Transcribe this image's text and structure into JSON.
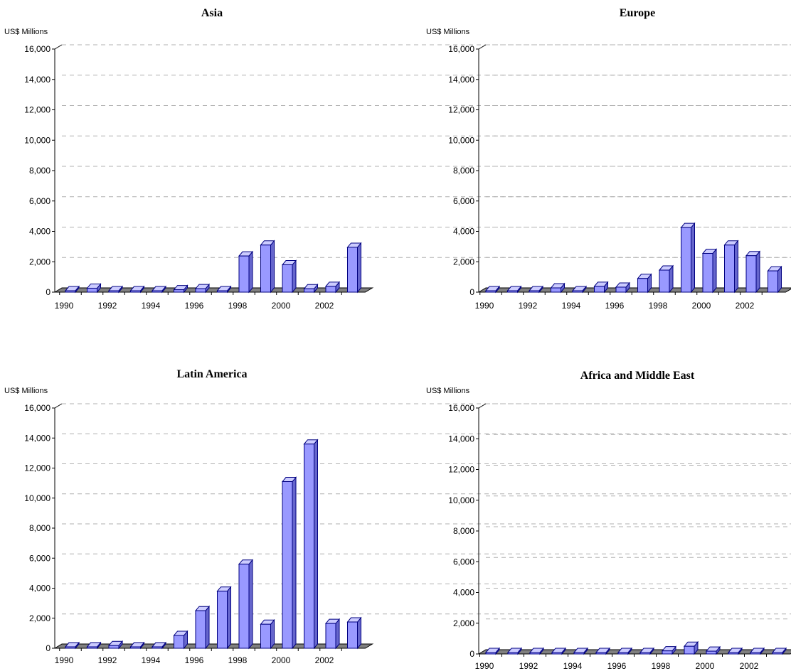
{
  "chart_data": [
    {
      "type": "bar",
      "title": "Asia",
      "ylabel": "US$ Millions",
      "xlabel": "",
      "ylim": [
        0,
        16000
      ],
      "yticks": [
        "0",
        "2,000",
        "4,000",
        "6,000",
        "8,000",
        "10,000",
        "12,000",
        "14,000",
        "16,000"
      ],
      "categories": [
        "1990",
        "1991",
        "1992",
        "1993",
        "1994",
        "1995",
        "1996",
        "1997",
        "1998",
        "1999",
        "2000",
        "2001",
        "2002",
        "2003"
      ],
      "xtick_labels": [
        "1990",
        "",
        "1992",
        "",
        "1994",
        "",
        "1996",
        "",
        "1998",
        "",
        "2000",
        "",
        "2002",
        ""
      ],
      "values": [
        60,
        260,
        20,
        70,
        30,
        160,
        230,
        60,
        2380,
        3100,
        1800,
        220,
        380,
        2950
      ],
      "bar_color": "#9999ff",
      "grid": true
    },
    {
      "type": "bar",
      "title": "Europe",
      "ylabel": "US$ Millions",
      "xlabel": "",
      "ylim": [
        0,
        16000
      ],
      "yticks": [
        "0",
        "2,000",
        "4,000",
        "6,000",
        "8,000",
        "10,000",
        "12,000",
        "14,000",
        "16,000"
      ],
      "categories": [
        "1990",
        "1991",
        "1992",
        "1993",
        "1994",
        "1995",
        "1996",
        "1997",
        "1998",
        "1999",
        "2000",
        "2001",
        "2002",
        "2003"
      ],
      "xtick_labels": [
        "1990",
        "",
        "1992",
        "",
        "1994",
        "",
        "1996",
        "",
        "1998",
        "",
        "2000",
        "",
        "2002",
        ""
      ],
      "values": [
        30,
        20,
        60,
        280,
        80,
        380,
        330,
        900,
        1450,
        4250,
        2550,
        3100,
        2400,
        1400
      ],
      "bar_color": "#9999ff",
      "grid": true
    },
    {
      "type": "bar",
      "title": "Latin America",
      "ylabel": "US$ Millions",
      "xlabel": "",
      "ylim": [
        0,
        16000
      ],
      "yticks": [
        "0",
        "2,000",
        "4,000",
        "6,000",
        "8,000",
        "10,000",
        "12,000",
        "14,000",
        "16,000"
      ],
      "categories": [
        "1990",
        "1991",
        "1992",
        "1993",
        "1994",
        "1995",
        "1996",
        "1997",
        "1998",
        "1999",
        "2000",
        "2001",
        "2002",
        "2003"
      ],
      "xtick_labels": [
        "1990",
        "",
        "1992",
        "",
        "1994",
        "",
        "1996",
        "",
        "1998",
        "",
        "2000",
        "",
        "2002",
        ""
      ],
      "values": [
        20,
        60,
        180,
        80,
        80,
        850,
        2500,
        3800,
        5600,
        1600,
        11100,
        13600,
        1650,
        1750
      ],
      "bar_color": "#9999ff",
      "grid": true
    },
    {
      "type": "bar",
      "title": "Africa and Middle East",
      "ylabel": "US$ Millions",
      "xlabel": "",
      "ylim": [
        0,
        16000
      ],
      "yticks": [
        "0",
        "2,000",
        "4,000",
        "6,000",
        "8,000",
        "10,000",
        "12,000",
        "14,000",
        "16,000"
      ],
      "categories": [
        "1990",
        "1991",
        "1992",
        "1993",
        "1994",
        "1995",
        "1996",
        "1997",
        "1998",
        "1999",
        "2000",
        "2001",
        "2002",
        "2003"
      ],
      "xtick_labels": [
        "1990",
        "",
        "1992",
        "",
        "1994",
        "",
        "1996",
        "",
        "1998",
        "",
        "2000",
        "",
        "2002",
        ""
      ],
      "values": [
        10,
        10,
        10,
        10,
        10,
        0,
        10,
        80,
        200,
        500,
        180,
        30,
        40,
        30
      ],
      "bar_color": "#9999ff",
      "grid": true
    }
  ]
}
